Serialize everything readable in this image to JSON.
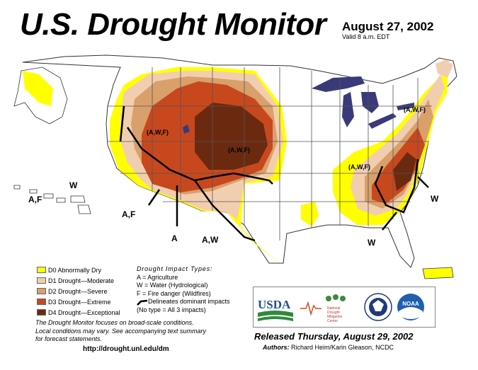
{
  "header": {
    "title": "U.S. Drought Monitor",
    "date": "August 27, 2002",
    "valid_time": "Valid 8 a.m. EDT"
  },
  "map": {
    "impact_labels": [
      "A,F",
      "W",
      "A,F",
      "A",
      "A,W",
      "W",
      "W"
    ],
    "inset_labels": [
      "(A,W,F)",
      "(A,W,F)",
      "(A,W,F)",
      "(A,W,F)"
    ]
  },
  "legend": {
    "items": [
      {
        "code": "D0",
        "label": "D0 Abnormally Dry",
        "color": "#ffff00"
      },
      {
        "code": "D1",
        "label": "D1 Drought—Moderate",
        "color": "#f2ceb0"
      },
      {
        "code": "D2",
        "label": "D2 Drought—Severe",
        "color": "#d9a06b"
      },
      {
        "code": "D3",
        "label": "D3 Drought—Extreme",
        "color": "#c8481e"
      },
      {
        "code": "D4",
        "label": "D4 Drought—Exceptional",
        "color": "#6b2a10"
      }
    ]
  },
  "impacts": {
    "title": "Drought Impact Types:",
    "agriculture": "A = Agriculture",
    "water": "W = Water (Hydrological)",
    "fire": "F = Fire danger (Wildfires)",
    "delineates": "Delineates dominant impacts",
    "no_type": "(No type = All 3 impacts)"
  },
  "note": {
    "line1": "The Drought Monitor focuses on broad-scale conditions.",
    "line2": "Local conditions may vary. See accompanying text summary",
    "line3": "for forecast statements."
  },
  "url": "http://drought.unl.edu/dm",
  "logos": {
    "usda": "USDA",
    "ndmc_line1": "National",
    "ndmc_line2": "Drought",
    "ndmc_line3": "Mitigation",
    "ndmc_line4": "Center",
    "noaa": "NOAA"
  },
  "footer": {
    "released": "Released Thursday, August 29, 2002",
    "authors_label": "Authors:",
    "authors": "Richard Heim/Karin Gleason, NCDC"
  },
  "colors": {
    "lakes": "#3a3a7a",
    "state_lines": "#555555",
    "county_lines": "#b0b0b0"
  }
}
